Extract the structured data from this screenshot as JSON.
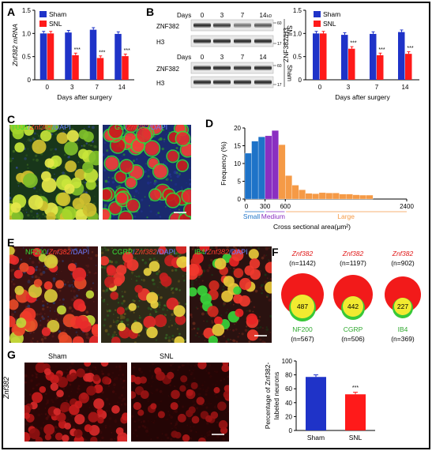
{
  "panels": {
    "a": "A",
    "b": "B",
    "c": "C",
    "d": "D",
    "e": "E",
    "f": "F",
    "g": "G"
  },
  "colors": {
    "sham": "#1f33c8",
    "snl": "#ff1a1a",
    "small": "#1e73c8",
    "medium": "#8a2fc1",
    "large": "#f59a46"
  },
  "common": {
    "days_after_surgery": "Days after surgery",
    "sig": "***"
  },
  "blots": {
    "days_label": "Days",
    "days": [
      "0",
      "3",
      "7",
      "14"
    ],
    "rows": [
      "ZNF382",
      "H3",
      "ZNF382",
      "H3"
    ],
    "kd_label": "kD",
    "kd_marks": [
      "60",
      "17",
      "60",
      "17"
    ],
    "groups": [
      "SNL",
      "Sham"
    ]
  },
  "micro_labels": {
    "tuj1": "TUJ1",
    "gs": "GS",
    "nf200": "NF200",
    "cgrp": "CGRP",
    "ib4": "IB4",
    "znf382": "Znf382",
    "dapi": "DAPI",
    "slash": "/"
  },
  "panel_g": {
    "sham": "Sham",
    "snl": "SNL",
    "ylabel": "Znf382"
  },
  "panel_f": {
    "title": "Znf382",
    "circles": [
      {
        "top_n": "(n=1142)",
        "overlap": "487",
        "marker": "NF200",
        "bottom_n": "(n=567)"
      },
      {
        "top_n": "(n=1197)",
        "overlap": "442",
        "marker": "CGRP",
        "bottom_n": "(n=506)"
      },
      {
        "top_n": "(n=902)",
        "overlap": "227",
        "marker": "IB4",
        "bottom_n": "(n=369)"
      }
    ]
  },
  "chart_data": [
    {
      "panel": "A",
      "type": "bar",
      "ylabel": "Znf382 mRNA",
      "xlabel": "Days after surgery",
      "categories": [
        "0",
        "3",
        "7",
        "14"
      ],
      "ylim": [
        0,
        1.5
      ],
      "yticks": [
        "0",
        "0.5",
        "1.0",
        "1.5"
      ],
      "series": [
        {
          "name": "Sham",
          "values": [
            1.0,
            1.02,
            1.08,
            0.99
          ]
        },
        {
          "name": "SNL",
          "values": [
            1.0,
            0.53,
            0.47,
            0.51
          ]
        }
      ],
      "significance": [
        "",
        "***",
        "***",
        "***"
      ],
      "legend": "top-left"
    },
    {
      "panel": "B",
      "type": "bar",
      "ylabel": "ZNF382/H3",
      "xlabel": "Days after surgery",
      "categories": [
        "0",
        "3",
        "7",
        "14"
      ],
      "ylim": [
        0,
        1.5
      ],
      "yticks": [
        "0",
        "0.5",
        "1.0",
        "1.5"
      ],
      "series": [
        {
          "name": "Sham",
          "values": [
            1.0,
            0.97,
            0.99,
            1.03
          ]
        },
        {
          "name": "SNL",
          "values": [
            1.0,
            0.67,
            0.53,
            0.56
          ]
        }
      ],
      "significance": [
        "",
        "***",
        "***",
        "***"
      ],
      "legend": "top-left"
    },
    {
      "panel": "D",
      "type": "bar",
      "ylabel": "Frequency (%)",
      "xlabel": "Cross sectional area(μm²)",
      "ylim": [
        0,
        20
      ],
      "yticks": [
        "0",
        "5",
        "10",
        "15",
        "20"
      ],
      "xticks": [
        "0",
        "300",
        "600",
        "2400"
      ],
      "bin_width": 100,
      "x_range": [
        0,
        2400
      ],
      "bins": [
        {
          "start": 0,
          "value": 12.9,
          "group": "Small"
        },
        {
          "start": 100,
          "value": 16.3,
          "group": "Small"
        },
        {
          "start": 200,
          "value": 17.5,
          "group": "Small"
        },
        {
          "start": 300,
          "value": 17.8,
          "group": "Medium"
        },
        {
          "start": 400,
          "value": 19.3,
          "group": "Medium"
        },
        {
          "start": 500,
          "value": 15.3,
          "group": "Large"
        },
        {
          "start": 600,
          "value": 6.6,
          "group": "Large"
        },
        {
          "start": 700,
          "value": 3.9,
          "group": "Large"
        },
        {
          "start": 800,
          "value": 2.6,
          "group": "Large"
        },
        {
          "start": 900,
          "value": 1.6,
          "group": "Large"
        },
        {
          "start": 1000,
          "value": 1.5,
          "group": "Large"
        },
        {
          "start": 1100,
          "value": 1.8,
          "group": "Large"
        },
        {
          "start": 1200,
          "value": 1.7,
          "group": "Large"
        },
        {
          "start": 1300,
          "value": 1.7,
          "group": "Large"
        },
        {
          "start": 1400,
          "value": 1.4,
          "group": "Large"
        },
        {
          "start": 1500,
          "value": 1.4,
          "group": "Large"
        },
        {
          "start": 1600,
          "value": 1.2,
          "group": "Large"
        },
        {
          "start": 1700,
          "value": 1.1,
          "group": "Large"
        },
        {
          "start": 1800,
          "value": 1.1,
          "group": "Large"
        }
      ],
      "size_groups": [
        "Small",
        "Medium",
        "Large"
      ]
    },
    {
      "panel": "G",
      "type": "bar",
      "ylabel": "Percentage of Znf382-labeled neurons",
      "categories": [
        "Sham",
        "SNL"
      ],
      "ylim": [
        0,
        100
      ],
      "yticks": [
        "0",
        "20",
        "40",
        "60",
        "80",
        "100"
      ],
      "values": [
        77,
        52
      ],
      "significance": [
        "",
        "***"
      ]
    }
  ]
}
